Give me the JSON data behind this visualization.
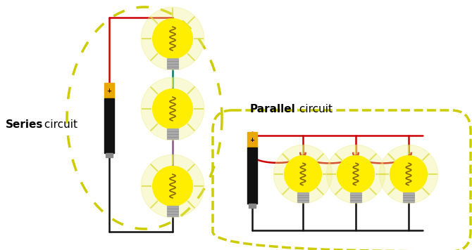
{
  "bg_color": "#ffffff",
  "series_label_bold": "Series",
  "series_label_normal": " circuit",
  "parallel_label_bold": "Parallel",
  "parallel_label_normal": " circuit",
  "wire_red": "#cc0000",
  "wire_black": "#111111",
  "wire_teal": "#007766",
  "wire_purple": "#885588",
  "battery_yellow": "#e8a800",
  "battery_black": "#111111",
  "bulb_yellow": "#ffee00",
  "bulb_glow": "#eeee88",
  "bulb_outline": "#888800",
  "dash_color": "#cccc00",
  "base_color": "#aaaaaa"
}
